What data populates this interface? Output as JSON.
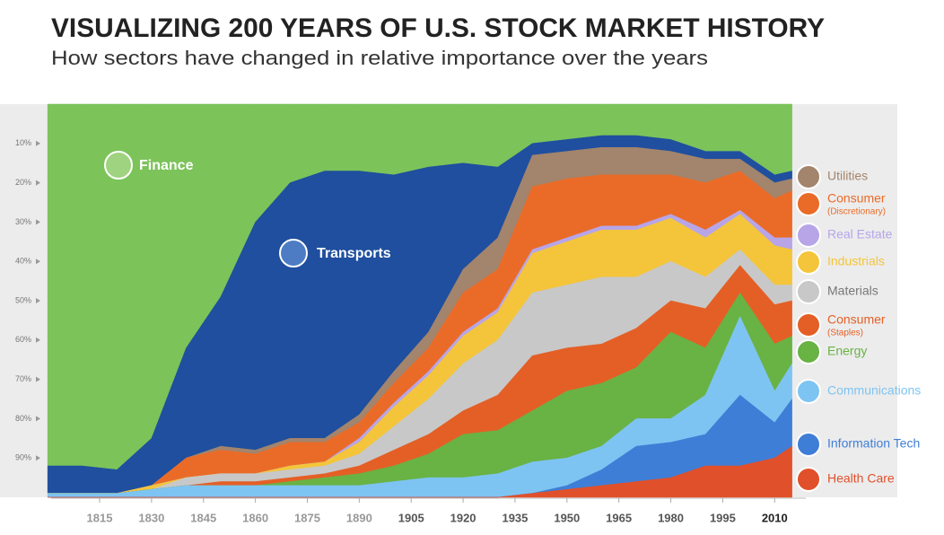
{
  "chart_data": {
    "type": "stacked-area",
    "title": "VISUALIZING 200 YEARS OF U.S. STOCK MARKET HISTORY",
    "subtitle": "How sectors have changed in relative importance over the years",
    "x": [
      1800,
      1810,
      1820,
      1830,
      1840,
      1850,
      1860,
      1870,
      1880,
      1890,
      1900,
      1910,
      1920,
      1930,
      1940,
      1950,
      1960,
      1970,
      1980,
      1990,
      2000,
      2010,
      2015
    ],
    "xlim": [
      1801,
      2019
    ],
    "xticks": [
      1815,
      1830,
      1845,
      1860,
      1875,
      1890,
      1905,
      1920,
      1935,
      1950,
      1965,
      1980,
      1995,
      2010
    ],
    "ylim": [
      0,
      100
    ],
    "yticks": [
      {
        "value": 10,
        "label": "10%"
      },
      {
        "value": 20,
        "label": "20%"
      },
      {
        "value": 30,
        "label": "30%"
      },
      {
        "value": 40,
        "label": "40%"
      },
      {
        "value": 50,
        "label": "50%"
      },
      {
        "value": 60,
        "label": "60%"
      },
      {
        "value": 70,
        "label": "70%"
      },
      {
        "value": 80,
        "label": "80%"
      },
      {
        "value": 90,
        "label": "90%"
      }
    ],
    "series": [
      {
        "name": "Finance",
        "color": "#7cc35a",
        "values": [
          92,
          92,
          93,
          85,
          62,
          49,
          30,
          20,
          17,
          17,
          18,
          16,
          15,
          16,
          10,
          9,
          8,
          8,
          9,
          12,
          12,
          18,
          17
        ]
      },
      {
        "name": "Transports",
        "color": "#1f4f9e",
        "values": [
          7,
          7,
          6,
          12,
          28,
          38,
          58,
          65,
          68,
          62,
          50,
          42,
          27,
          18,
          3,
          3,
          3,
          3,
          3,
          2,
          2,
          2,
          2
        ]
      },
      {
        "name": "Utilities",
        "color": "#a3846c",
        "values": [
          0,
          0,
          0,
          0,
          0,
          1,
          1,
          1,
          1,
          2,
          3,
          4,
          6,
          8,
          8,
          7,
          7,
          7,
          6,
          6,
          3,
          4,
          3
        ]
      },
      {
        "name": "Consumer",
        "sublabel": "(Discretionary)",
        "color": "#ea6b28",
        "values": [
          0,
          0,
          0,
          0,
          5,
          6,
          5,
          6,
          5,
          4,
          5,
          6,
          10,
          10,
          16,
          15,
          13,
          13,
          10,
          12,
          10,
          10,
          12
        ]
      },
      {
        "name": "Real Estate",
        "color": "#b7a5e8",
        "values": [
          0,
          0,
          0,
          0,
          0,
          0,
          0,
          0,
          0,
          1,
          1,
          1,
          1,
          1,
          1,
          1,
          1,
          1,
          1,
          2,
          1,
          2,
          3
        ]
      },
      {
        "name": "Industrials",
        "color": "#f4c53a",
        "values": [
          0,
          0,
          0,
          1,
          0,
          0,
          0,
          1,
          1,
          3,
          5,
          6,
          7,
          7,
          10,
          11,
          12,
          12,
          11,
          10,
          9,
          10,
          9
        ]
      },
      {
        "name": "Materials",
        "color": "#c8c8c8",
        "values": [
          0,
          0,
          0,
          0,
          2,
          2,
          2,
          2,
          2,
          3,
          6,
          9,
          12,
          14,
          16,
          16,
          17,
          13,
          10,
          8,
          4,
          5,
          4
        ]
      },
      {
        "name": "Consumer",
        "sublabel": "(Staples)",
        "color": "#e45f26",
        "values": [
          0,
          0,
          0,
          0,
          0,
          1,
          1,
          1,
          1,
          2,
          4,
          5,
          6,
          9,
          14,
          11,
          10,
          10,
          8,
          10,
          7,
          10,
          9
        ]
      },
      {
        "name": "Energy",
        "color": "#69b244",
        "values": [
          0,
          0,
          0,
          0,
          0,
          0,
          0,
          1,
          2,
          3,
          4,
          6,
          11,
          11,
          13,
          17,
          16,
          13,
          22,
          12,
          6,
          12,
          7
        ]
      },
      {
        "name": "Communications",
        "color": "#7ec4f2",
        "values": [
          1,
          1,
          1,
          2,
          3,
          3,
          3,
          3,
          3,
          3,
          4,
          5,
          5,
          6,
          8,
          7,
          6,
          7,
          6,
          10,
          20,
          8,
          9
        ]
      },
      {
        "name": "Information Tech",
        "color": "#3f7ed6",
        "values": [
          0,
          0,
          0,
          0,
          0,
          0,
          0,
          0,
          0,
          0,
          0,
          0,
          0,
          0,
          0,
          1,
          4,
          9,
          9,
          8,
          18,
          9,
          12
        ]
      },
      {
        "name": "Health Care",
        "color": "#e0502b",
        "values": [
          0,
          0,
          0,
          0,
          0,
          0,
          0,
          0,
          0,
          0,
          0,
          0,
          0,
          0,
          1,
          2,
          3,
          4,
          5,
          8,
          8,
          10,
          13
        ]
      }
    ]
  }
}
